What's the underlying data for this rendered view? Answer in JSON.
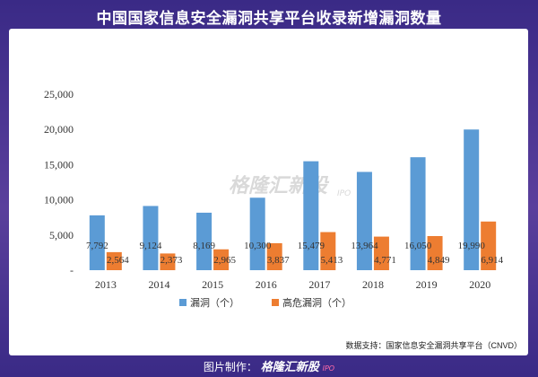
{
  "header": {
    "title": "中国国家信息安全漏洞共享平台收录新增漏洞数量"
  },
  "watermark": {
    "text": "格隆汇新股",
    "sub": "IPO"
  },
  "source": {
    "text": "数据支持：国家信息安全漏洞共享平台（CNVD）"
  },
  "footer": {
    "prefix": "图片制作：",
    "logo": "格隆汇新股",
    "sub": "IPO"
  },
  "colors": {
    "series1": "#5b9bd5",
    "series2": "#ed7d31"
  },
  "chart_data": {
    "type": "bar",
    "title": "中国国家信息安全漏洞共享平台收录新增漏洞数量",
    "categories": [
      "2013",
      "2014",
      "2015",
      "2016",
      "2017",
      "2018",
      "2019",
      "2020"
    ],
    "series": [
      {
        "name": "漏洞（个）",
        "values": [
          7792,
          9124,
          8169,
          10300,
          15479,
          13964,
          16050,
          19990
        ],
        "labels": [
          "7,792",
          "9,124",
          "8,169",
          "10,300",
          "15,479",
          "13,964",
          "16,050",
          "19,990"
        ]
      },
      {
        "name": "高危漏洞（个）",
        "values": [
          2564,
          2373,
          2965,
          3837,
          5413,
          4771,
          4849,
          6914
        ],
        "labels": [
          "2,564",
          "2,373",
          "2,965",
          "3,837",
          "5,413",
          "4,771",
          "4,849",
          "6,914"
        ]
      }
    ],
    "ylim": [
      0,
      25000
    ],
    "yticks": [
      "-",
      "5,000",
      "10,000",
      "15,000",
      "20,000",
      "25,000"
    ],
    "yticks_values": [
      0,
      5000,
      10000,
      15000,
      20000,
      25000
    ],
    "grid": false,
    "legend": "bottom"
  }
}
